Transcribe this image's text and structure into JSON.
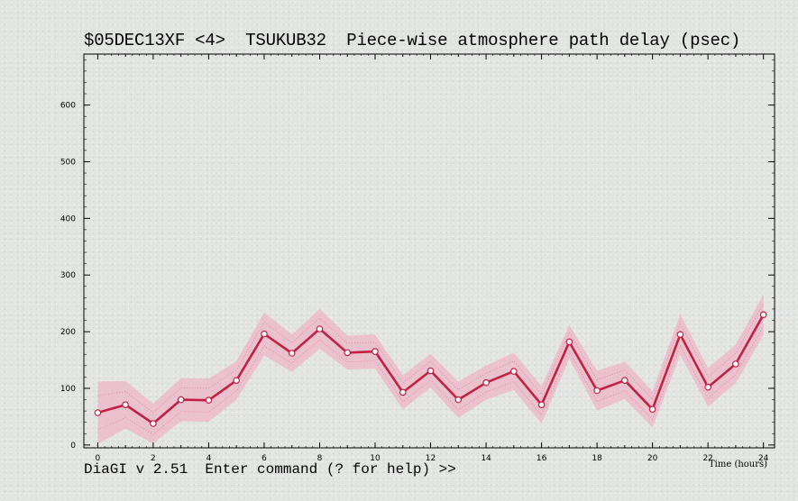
{
  "chart_data": {
    "type": "line",
    "title": "$05DEC13XF <4>  TSUKUB32  Piece-wise atmosphere path delay (psec)",
    "xlabel": "Time (hours)",
    "ylabel": "",
    "xlim": [
      -0.5,
      24.4
    ],
    "ylim": [
      -5,
      690
    ],
    "x_ticks": [
      0,
      2,
      4,
      6,
      8,
      10,
      12,
      14,
      16,
      18,
      20,
      22,
      24
    ],
    "y_ticks": [
      0,
      100,
      200,
      300,
      400,
      500,
      600
    ],
    "grid": false,
    "series": [
      {
        "color": "#c42043",
        "band_color": "#ecb6c6",
        "x": [
          0,
          1,
          2,
          3,
          4,
          5,
          6,
          7,
          8,
          9,
          10,
          11,
          12,
          13,
          14,
          15,
          16,
          17,
          18,
          19,
          20,
          21,
          22,
          23,
          24
        ],
        "y": [
          57,
          71,
          38,
          80,
          79,
          114,
          196,
          162,
          205,
          163,
          165,
          93,
          131,
          80,
          110,
          130,
          71,
          182,
          96,
          114,
          63,
          195,
          102,
          143,
          230
        ],
        "err": [
          55,
          42,
          35,
          38,
          38,
          34,
          38,
          33,
          35,
          30,
          30,
          30,
          30,
          32,
          30,
          33,
          33,
          30,
          35,
          33,
          32,
          36,
          34,
          34,
          36
        ]
      }
    ]
  },
  "prompt": "DiaGI v 2.51  Enter command (? for help) >>"
}
